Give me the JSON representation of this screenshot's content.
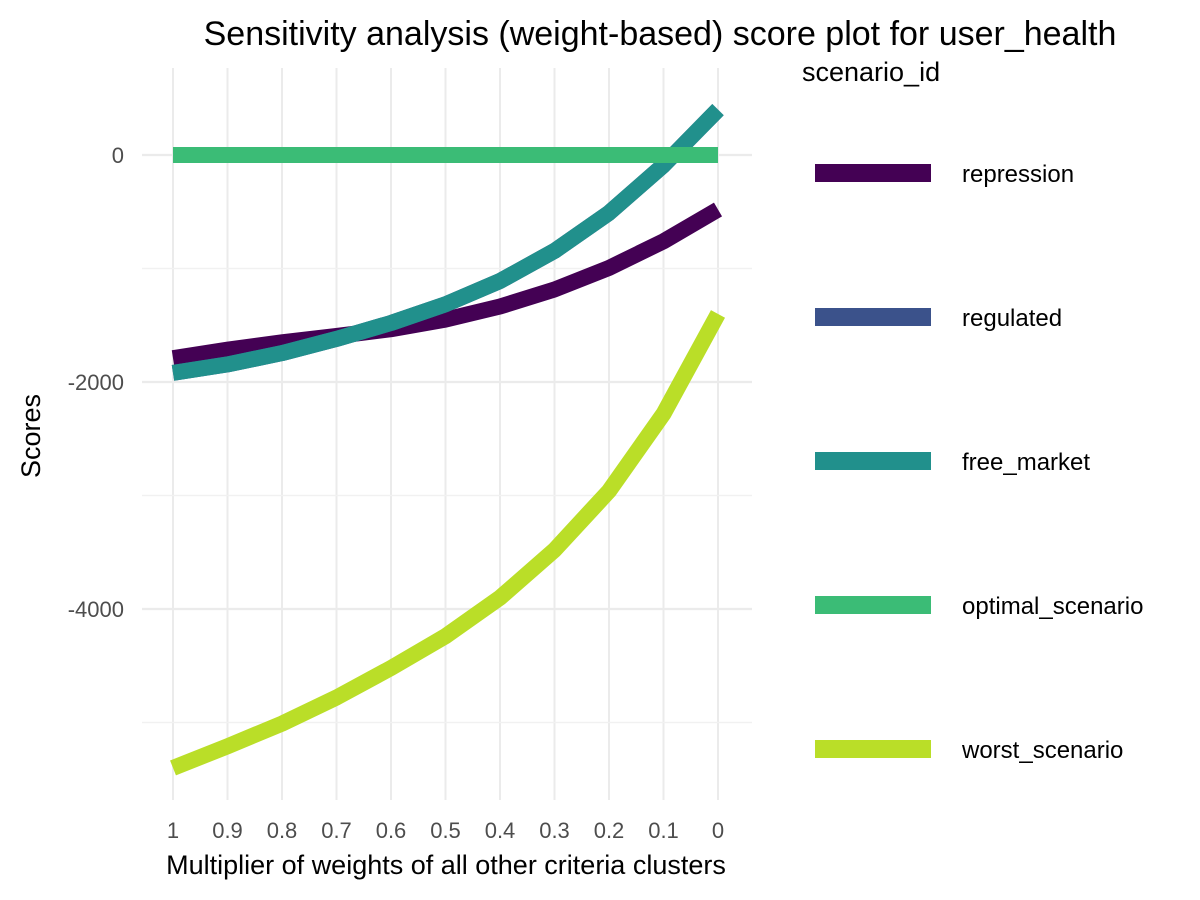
{
  "chart_data": {
    "type": "line",
    "title": "Sensitivity analysis (weight-based) score plot for user_health",
    "xlabel": "Multiplier of weights of all other criteria clusters",
    "ylabel": "Scores",
    "x": [
      1,
      0.9,
      0.8,
      0.7,
      0.6,
      0.5,
      0.4,
      0.3,
      0.2,
      0.1,
      0
    ],
    "x_tick_labels": [
      "1",
      "0.9",
      "0.8",
      "0.7",
      "0.6",
      "0.5",
      "0.4",
      "0.3",
      "0.2",
      "0.1",
      "0"
    ],
    "x_reversed": true,
    "xlim": [
      1,
      0
    ],
    "y_ticks": [
      0,
      -2000,
      -4000
    ],
    "y_tick_labels": [
      "0",
      "-2000",
      "-4000"
    ],
    "ylim": [
      -5650,
      500
    ],
    "grid": true,
    "legend": {
      "title": "scenario_id",
      "position": "right"
    },
    "series": [
      {
        "name": "repression",
        "color": "#440154",
        "values": [
          -1790,
          -1715,
          -1650,
          -1595,
          -1535,
          -1450,
          -1335,
          -1185,
          -995,
          -760,
          -480
        ]
      },
      {
        "name": "regulated",
        "color": "#3b528b",
        "values": [
          -1920,
          -1845,
          -1745,
          -1620,
          -1480,
          -1315,
          -1110,
          -845,
          -510,
          -90,
          400
        ]
      },
      {
        "name": "free_market",
        "color": "#21908c",
        "values": [
          -1920,
          -1845,
          -1745,
          -1620,
          -1480,
          -1315,
          -1110,
          -845,
          -510,
          -90,
          400
        ]
      },
      {
        "name": "optimal_scenario",
        "color": "#3bbc76",
        "values": [
          0,
          0,
          0,
          0,
          0,
          0,
          0,
          0,
          0,
          0,
          0
        ]
      },
      {
        "name": "worst_scenario",
        "color": "#bade28",
        "values": [
          -5400,
          -5210,
          -5010,
          -4780,
          -4520,
          -4240,
          -3900,
          -3480,
          -2960,
          -2280,
          -1400
        ]
      }
    ]
  }
}
